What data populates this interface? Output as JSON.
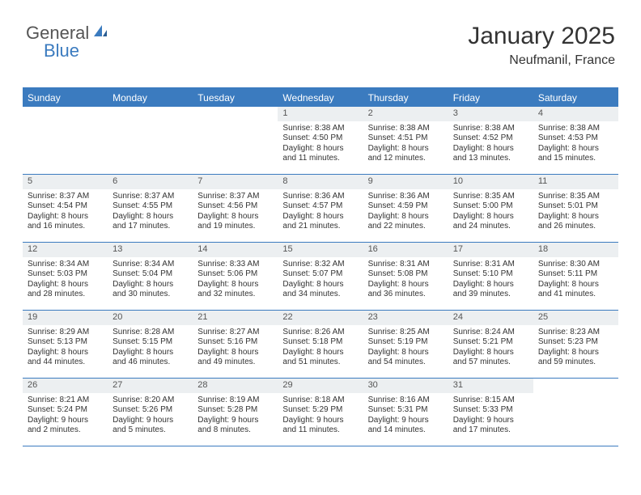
{
  "logo": {
    "part1": "General",
    "part2": "Blue"
  },
  "title": "January 2025",
  "location": "Neufmanil, France",
  "colors": {
    "accent": "#3b7bbf",
    "daynum_bg": "#eceff1",
    "text": "#333333",
    "logo_gray": "#555555"
  },
  "day_headers": [
    "Sunday",
    "Monday",
    "Tuesday",
    "Wednesday",
    "Thursday",
    "Friday",
    "Saturday"
  ],
  "weeks": [
    [
      null,
      null,
      null,
      {
        "d": "1",
        "sr": "Sunrise: 8:38 AM",
        "ss": "Sunset: 4:50 PM",
        "dl": "Daylight: 8 hours and 11 minutes."
      },
      {
        "d": "2",
        "sr": "Sunrise: 8:38 AM",
        "ss": "Sunset: 4:51 PM",
        "dl": "Daylight: 8 hours and 12 minutes."
      },
      {
        "d": "3",
        "sr": "Sunrise: 8:38 AM",
        "ss": "Sunset: 4:52 PM",
        "dl": "Daylight: 8 hours and 13 minutes."
      },
      {
        "d": "4",
        "sr": "Sunrise: 8:38 AM",
        "ss": "Sunset: 4:53 PM",
        "dl": "Daylight: 8 hours and 15 minutes."
      }
    ],
    [
      {
        "d": "5",
        "sr": "Sunrise: 8:37 AM",
        "ss": "Sunset: 4:54 PM",
        "dl": "Daylight: 8 hours and 16 minutes."
      },
      {
        "d": "6",
        "sr": "Sunrise: 8:37 AM",
        "ss": "Sunset: 4:55 PM",
        "dl": "Daylight: 8 hours and 17 minutes."
      },
      {
        "d": "7",
        "sr": "Sunrise: 8:37 AM",
        "ss": "Sunset: 4:56 PM",
        "dl": "Daylight: 8 hours and 19 minutes."
      },
      {
        "d": "8",
        "sr": "Sunrise: 8:36 AM",
        "ss": "Sunset: 4:57 PM",
        "dl": "Daylight: 8 hours and 21 minutes."
      },
      {
        "d": "9",
        "sr": "Sunrise: 8:36 AM",
        "ss": "Sunset: 4:59 PM",
        "dl": "Daylight: 8 hours and 22 minutes."
      },
      {
        "d": "10",
        "sr": "Sunrise: 8:35 AM",
        "ss": "Sunset: 5:00 PM",
        "dl": "Daylight: 8 hours and 24 minutes."
      },
      {
        "d": "11",
        "sr": "Sunrise: 8:35 AM",
        "ss": "Sunset: 5:01 PM",
        "dl": "Daylight: 8 hours and 26 minutes."
      }
    ],
    [
      {
        "d": "12",
        "sr": "Sunrise: 8:34 AM",
        "ss": "Sunset: 5:03 PM",
        "dl": "Daylight: 8 hours and 28 minutes."
      },
      {
        "d": "13",
        "sr": "Sunrise: 8:34 AM",
        "ss": "Sunset: 5:04 PM",
        "dl": "Daylight: 8 hours and 30 minutes."
      },
      {
        "d": "14",
        "sr": "Sunrise: 8:33 AM",
        "ss": "Sunset: 5:06 PM",
        "dl": "Daylight: 8 hours and 32 minutes."
      },
      {
        "d": "15",
        "sr": "Sunrise: 8:32 AM",
        "ss": "Sunset: 5:07 PM",
        "dl": "Daylight: 8 hours and 34 minutes."
      },
      {
        "d": "16",
        "sr": "Sunrise: 8:31 AM",
        "ss": "Sunset: 5:08 PM",
        "dl": "Daylight: 8 hours and 36 minutes."
      },
      {
        "d": "17",
        "sr": "Sunrise: 8:31 AM",
        "ss": "Sunset: 5:10 PM",
        "dl": "Daylight: 8 hours and 39 minutes."
      },
      {
        "d": "18",
        "sr": "Sunrise: 8:30 AM",
        "ss": "Sunset: 5:11 PM",
        "dl": "Daylight: 8 hours and 41 minutes."
      }
    ],
    [
      {
        "d": "19",
        "sr": "Sunrise: 8:29 AM",
        "ss": "Sunset: 5:13 PM",
        "dl": "Daylight: 8 hours and 44 minutes."
      },
      {
        "d": "20",
        "sr": "Sunrise: 8:28 AM",
        "ss": "Sunset: 5:15 PM",
        "dl": "Daylight: 8 hours and 46 minutes."
      },
      {
        "d": "21",
        "sr": "Sunrise: 8:27 AM",
        "ss": "Sunset: 5:16 PM",
        "dl": "Daylight: 8 hours and 49 minutes."
      },
      {
        "d": "22",
        "sr": "Sunrise: 8:26 AM",
        "ss": "Sunset: 5:18 PM",
        "dl": "Daylight: 8 hours and 51 minutes."
      },
      {
        "d": "23",
        "sr": "Sunrise: 8:25 AM",
        "ss": "Sunset: 5:19 PM",
        "dl": "Daylight: 8 hours and 54 minutes."
      },
      {
        "d": "24",
        "sr": "Sunrise: 8:24 AM",
        "ss": "Sunset: 5:21 PM",
        "dl": "Daylight: 8 hours and 57 minutes."
      },
      {
        "d": "25",
        "sr": "Sunrise: 8:23 AM",
        "ss": "Sunset: 5:23 PM",
        "dl": "Daylight: 8 hours and 59 minutes."
      }
    ],
    [
      {
        "d": "26",
        "sr": "Sunrise: 8:21 AM",
        "ss": "Sunset: 5:24 PM",
        "dl": "Daylight: 9 hours and 2 minutes."
      },
      {
        "d": "27",
        "sr": "Sunrise: 8:20 AM",
        "ss": "Sunset: 5:26 PM",
        "dl": "Daylight: 9 hours and 5 minutes."
      },
      {
        "d": "28",
        "sr": "Sunrise: 8:19 AM",
        "ss": "Sunset: 5:28 PM",
        "dl": "Daylight: 9 hours and 8 minutes."
      },
      {
        "d": "29",
        "sr": "Sunrise: 8:18 AM",
        "ss": "Sunset: 5:29 PM",
        "dl": "Daylight: 9 hours and 11 minutes."
      },
      {
        "d": "30",
        "sr": "Sunrise: 8:16 AM",
        "ss": "Sunset: 5:31 PM",
        "dl": "Daylight: 9 hours and 14 minutes."
      },
      {
        "d": "31",
        "sr": "Sunrise: 8:15 AM",
        "ss": "Sunset: 5:33 PM",
        "dl": "Daylight: 9 hours and 17 minutes."
      },
      null
    ]
  ]
}
